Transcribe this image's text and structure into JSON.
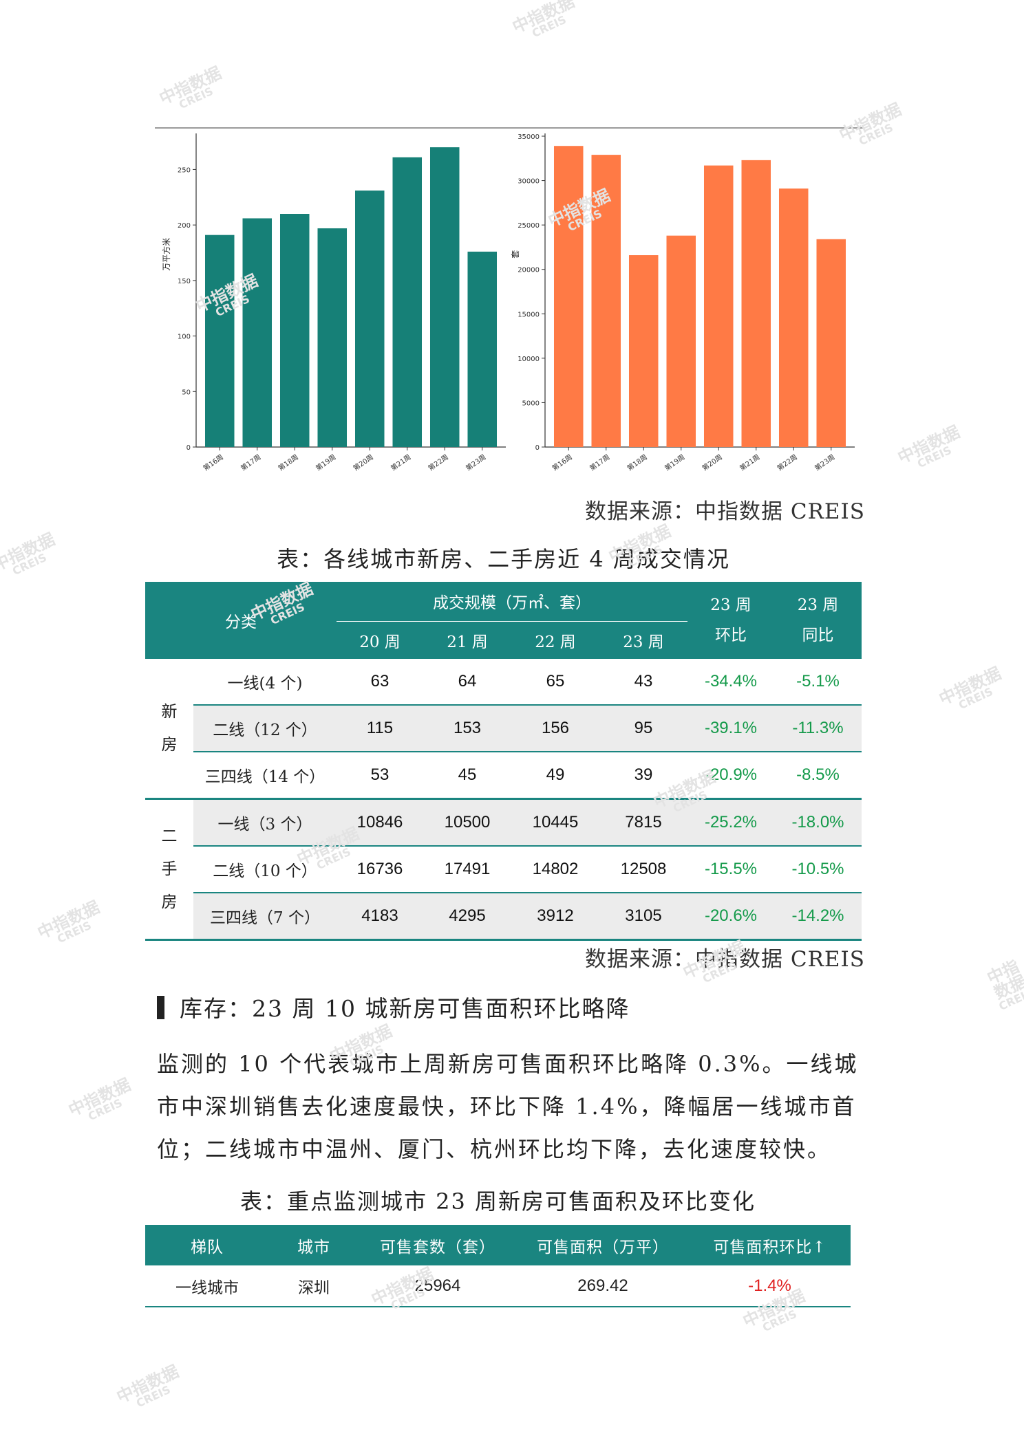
{
  "watermark": {
    "cn": "中指数据",
    "en": "CREIS"
  },
  "charts": {
    "left": {
      "ylabel": "万平方米",
      "color": "#168077",
      "ylim": [
        0,
        280
      ],
      "yticks": [
        0,
        50,
        100,
        150,
        200,
        250
      ],
      "categories": [
        "第16周",
        "第17周",
        "第18周",
        "第19周",
        "第20周",
        "第21周",
        "第22周",
        "第23周"
      ],
      "values": [
        191,
        206,
        210,
        197,
        231,
        261,
        270,
        176
      ]
    },
    "right": {
      "ylabel": "套",
      "color": "#ff7a45",
      "ylim": [
        0,
        35000
      ],
      "yticks": [
        0,
        5000,
        10000,
        15000,
        20000,
        25000,
        30000,
        35000
      ],
      "categories": [
        "第16周",
        "第17周",
        "第18周",
        "第19周",
        "第20周",
        "第21周",
        "第22周",
        "第23周"
      ],
      "values": [
        33900,
        32900,
        21600,
        23800,
        31700,
        32300,
        29100,
        23400
      ]
    }
  },
  "chart_data": [
    {
      "type": "bar",
      "categories": [
        "第16周",
        "第17周",
        "第18周",
        "第19周",
        "第20周",
        "第21周",
        "第22周",
        "第23周"
      ],
      "values": [
        191,
        206,
        210,
        197,
        231,
        261,
        270,
        176
      ],
      "ylabel": "万平方米",
      "ylim": [
        0,
        280
      ],
      "grid": false
    },
    {
      "type": "bar",
      "categories": [
        "第16周",
        "第17周",
        "第18周",
        "第19周",
        "第20周",
        "第21周",
        "第22周",
        "第23周"
      ],
      "values": [
        33900,
        32900,
        21600,
        23800,
        31700,
        32300,
        29100,
        23400
      ],
      "ylabel": "套",
      "ylim": [
        0,
        35000
      ],
      "grid": false
    }
  ],
  "source1": "数据来源：中指数据 CREIS",
  "table1": {
    "caption": "表：各线城市新房、二手房近 4 周成交情况",
    "h_category": "分类",
    "h_scale": "成交规模（万㎡、套）",
    "h_weeks": [
      "20 周",
      "21 周",
      "22 周",
      "23 周"
    ],
    "h_mom": [
      "23 周",
      "环比"
    ],
    "h_yoy": [
      "23 周",
      "同比"
    ],
    "groups": [
      {
        "label": [
          "新",
          "房"
        ],
        "rows": [
          {
            "name": "一线(4 个)",
            "v": [
              "63",
              "64",
              "65",
              "43"
            ],
            "mom": "-34.4%",
            "yoy": "-5.1%"
          },
          {
            "name": "二线（12 个）",
            "v": [
              "115",
              "153",
              "156",
              "95"
            ],
            "mom": "-39.1%",
            "yoy": "-11.3%"
          },
          {
            "name": "三四线（14 个）",
            "v": [
              "53",
              "45",
              "49",
              "39"
            ],
            "mom": "-20.9%",
            "yoy": "-8.5%"
          }
        ]
      },
      {
        "label": [
          "二",
          "手",
          "房"
        ],
        "rows": [
          {
            "name": "一线（3 个）",
            "v": [
              "10846",
              "10500",
              "10445",
              "7815"
            ],
            "mom": "-25.2%",
            "yoy": "-18.0%"
          },
          {
            "name": "二线（10 个）",
            "v": [
              "16736",
              "17491",
              "14802",
              "12508"
            ],
            "mom": "-15.5%",
            "yoy": "-10.5%"
          },
          {
            "name": "三四线（7 个）",
            "v": [
              "4183",
              "4295",
              "3912",
              "3105"
            ],
            "mom": "-20.6%",
            "yoy": "-14.2%"
          }
        ]
      }
    ]
  },
  "source2": "数据来源：中指数据 CREIS",
  "section_heading": "库存：23 周 10 城新房可售面积环比略降",
  "paragraph": "监测的 10 个代表城市上周新房可售面积环比略降 0.3%。一线城市中深圳销售去化速度最快，环比下降 1.4%，降幅居一线城市首位；二线城市中温州、厦门、杭州环比均下降，去化速度较快。",
  "table2": {
    "caption": "表：重点监测城市 23 周新房可售面积及环比变化",
    "headers": [
      "梯队",
      "城市",
      "可售套数（套）",
      "可售面积（万平）",
      "可售面积环比↑"
    ],
    "rows": [
      {
        "tier": "一线城市",
        "city": "深圳",
        "units": "25964",
        "area": "269.42",
        "mom": "-1.4%"
      }
    ]
  }
}
